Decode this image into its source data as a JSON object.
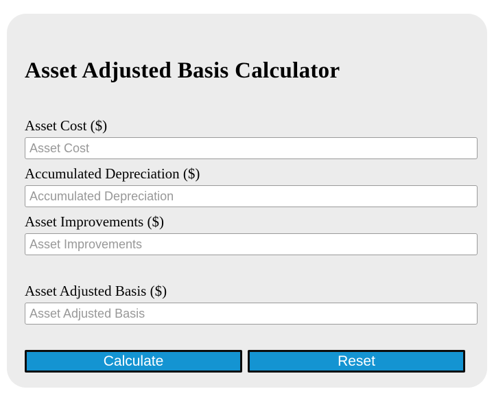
{
  "title": "Asset Adjusted Basis Calculator",
  "fields": [
    {
      "label": "Asset Cost ($)",
      "placeholder": "Asset Cost",
      "value": ""
    },
    {
      "label": "Accumulated Depreciation ($)",
      "placeholder": "Accumulated Depreciation",
      "value": ""
    },
    {
      "label": "Asset Improvements ($)",
      "placeholder": "Asset Improvements",
      "value": ""
    },
    {
      "label": "Asset Adjusted Basis ($)",
      "placeholder": "Asset Adjusted Basis",
      "value": ""
    }
  ],
  "buttons": {
    "calculate_label": "Calculate",
    "reset_label": "Reset"
  },
  "colors": {
    "page_background": "#ffffff",
    "card_background": "#ececec",
    "text": "#000000",
    "input_border": "#9a9a9a",
    "placeholder_text": "#989898",
    "button_background": "#1494d2",
    "button_border": "#0d0d0d",
    "button_text": "#ffffff"
  }
}
